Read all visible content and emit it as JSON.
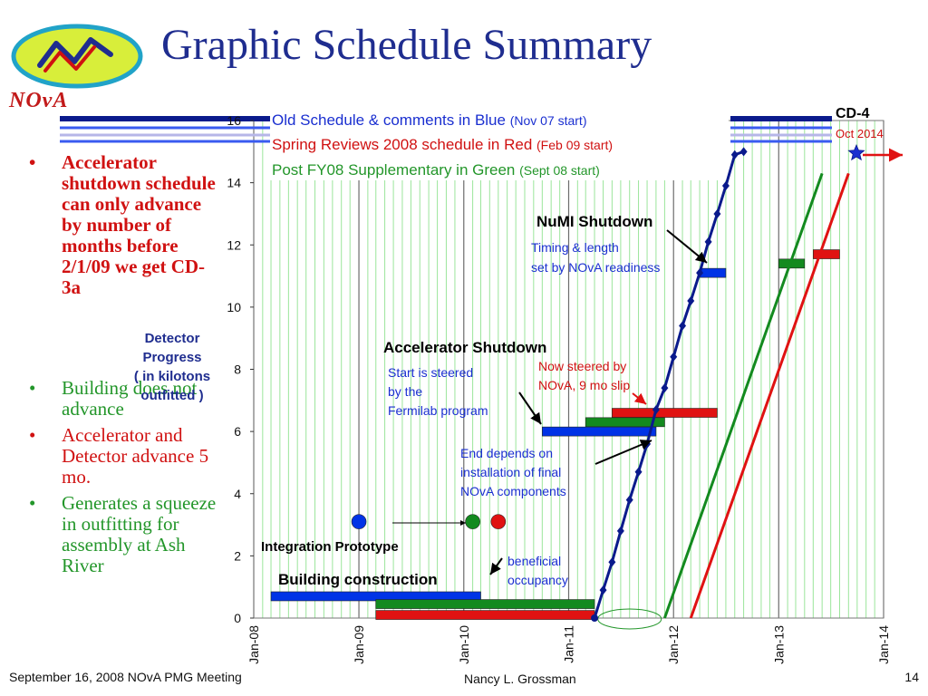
{
  "slide": {
    "title": "Graphic Schedule Summary",
    "logo_text": "NOvA"
  },
  "bullets": [
    {
      "text": "Accelerator shutdown schedule can only advance by number of months before 2/1/09 we get CD-3a",
      "color": "#d01111"
    },
    {
      "text": "Building does not advance",
      "color": "#23962a"
    },
    {
      "text": "Accelerator and Detector advance 5 mo.",
      "color": "#d01111"
    },
    {
      "text": "Generates a squeeze in outfitting for assembly at Ash River",
      "color": "#23962a"
    }
  ],
  "bullet_symbol": "•",
  "detector_label": [
    "Detector",
    "Progress",
    "( in kilotons",
    "outfitted )"
  ],
  "footer": {
    "left": "September 16, 2008 NOvA PMG Meeting",
    "center": "Nancy L. Grossman",
    "page": "14"
  },
  "chart_data": {
    "type": "line",
    "x_unit": "date",
    "xlim": [
      "2008-01-01",
      "2014-01-01"
    ],
    "ylim": [
      0,
      16
    ],
    "yticks": [
      0,
      2,
      4,
      6,
      8,
      10,
      12,
      14,
      16
    ],
    "xticks": [
      {
        "date": "2008-01-01",
        "label": "Jan-08"
      },
      {
        "date": "2009-01-01",
        "label": "Jan-09"
      },
      {
        "date": "2010-01-01",
        "label": "Jan-10"
      },
      {
        "date": "2011-01-01",
        "label": "Jan-11"
      },
      {
        "date": "2012-01-01",
        "label": "Jan-12"
      },
      {
        "date": "2013-01-01",
        "label": "Jan-13"
      },
      {
        "date": "2014-01-01",
        "label": "Jan-14"
      }
    ],
    "grid": "vertical-monthly",
    "colors": {
      "blue": "#0a1a8c",
      "bar_blue": "#0033e6",
      "green": "#138a1f",
      "red": "#e01212",
      "grid": "#9be59b"
    },
    "legend": [
      {
        "text": "Old Schedule & comments in Blue",
        "note": "(Nov 07 start)",
        "color": "#1a2fd0"
      },
      {
        "text": "Spring Reviews 2008 schedule in Red",
        "note": "(Feb 09 start)",
        "color": "#d01111"
      },
      {
        "text": "Post FY08 Supplementary in Green",
        "note": "(Sept 08 start)",
        "color": "#23962a"
      }
    ],
    "series": [
      {
        "name": "Old Schedule",
        "color": "blue",
        "markers": true,
        "points": [
          [
            "2011-04-01",
            0.0
          ],
          [
            "2011-05-01",
            0.9
          ],
          [
            "2011-06-01",
            1.8
          ],
          [
            "2011-07-01",
            2.8
          ],
          [
            "2011-08-01",
            3.8
          ],
          [
            "2011-09-01",
            4.7
          ],
          [
            "2011-10-01",
            5.6
          ],
          [
            "2011-11-01",
            6.7
          ],
          [
            "2011-12-01",
            7.4
          ],
          [
            "2012-01-01",
            8.4
          ],
          [
            "2012-02-01",
            9.4
          ],
          [
            "2012-03-01",
            10.2
          ],
          [
            "2012-04-01",
            11.1
          ],
          [
            "2012-05-01",
            12.1
          ],
          [
            "2012-06-01",
            13.0
          ],
          [
            "2012-07-01",
            13.9
          ],
          [
            "2012-08-01",
            14.9
          ],
          [
            "2012-09-01",
            15.0
          ]
        ]
      },
      {
        "name": "Post FY08 Supplementary",
        "color": "green",
        "markers": false,
        "points": [
          [
            "2011-12-01",
            0.0
          ],
          [
            "2013-06-01",
            14.3
          ]
        ]
      },
      {
        "name": "Spring Reviews 2008",
        "color": "red",
        "markers": false,
        "points": [
          [
            "2012-03-01",
            0.0
          ],
          [
            "2013-09-01",
            14.3
          ]
        ]
      }
    ],
    "bars": [
      {
        "color": "bar_blue",
        "start": "2008-03-01",
        "end": "2010-03-01",
        "y": 0.7
      },
      {
        "color": "green",
        "start": "2009-03-01",
        "end": "2011-04-01",
        "y": 0.45
      },
      {
        "color": "red",
        "start": "2009-03-01",
        "end": "2011-04-01",
        "y": 0.1
      },
      {
        "color": "bar_blue",
        "start": "2010-10-01",
        "end": "2011-11-01",
        "y": 6.0
      },
      {
        "color": "green",
        "start": "2011-03-01",
        "end": "2011-12-01",
        "y": 6.3
      },
      {
        "color": "red",
        "start": "2011-06-01",
        "end": "2012-06-01",
        "y": 6.6
      },
      {
        "color": "bar_blue",
        "start": "2012-04-01",
        "end": "2012-07-01",
        "y": 11.1
      },
      {
        "color": "green",
        "start": "2013-01-01",
        "end": "2013-04-01",
        "y": 11.4
      },
      {
        "color": "red",
        "start": "2013-05-01",
        "end": "2013-08-01",
        "y": 11.7
      }
    ],
    "dots": [
      {
        "color": "bar_blue",
        "date": "2009-01-01",
        "y": 3.1
      },
      {
        "color": "green",
        "date": "2010-02-01",
        "y": 3.1
      },
      {
        "color": "red",
        "date": "2010-05-01",
        "y": 3.1
      }
    ],
    "annotations": [
      {
        "text": "NuMI Shutdown",
        "color": "#000000",
        "bold": true,
        "size": 17
      },
      {
        "text": "Timing & length",
        "color": "#1a2fd0",
        "bold": false,
        "size": 14
      },
      {
        "text": "set by NOvA readiness",
        "color": "#1a2fd0",
        "bold": false,
        "size": 14
      },
      {
        "text": "Accelerator Shutdown",
        "color": "#000000",
        "bold": true,
        "size": 17
      },
      {
        "text": "Start is steered",
        "color": "#1a2fd0",
        "bold": false,
        "size": 14
      },
      {
        "text": "by the",
        "color": "#1a2fd0",
        "bold": false,
        "size": 14
      },
      {
        "text": "Fermilab program",
        "color": "#1a2fd0",
        "bold": false,
        "size": 14
      },
      {
        "text": "Now steered by",
        "color": "#d01111",
        "bold": false,
        "size": 14
      },
      {
        "text": "NOvA, 9 mo slip",
        "color": "#d01111",
        "bold": false,
        "size": 14
      },
      {
        "text": "End depends on",
        "color": "#1a2fd0",
        "bold": false,
        "size": 14
      },
      {
        "text": "installation of final",
        "color": "#1a2fd0",
        "bold": false,
        "size": 14
      },
      {
        "text": "NOvA components",
        "color": "#1a2fd0",
        "bold": false,
        "size": 14
      },
      {
        "text": "Integration Prototype",
        "color": "#000000",
        "bold": true,
        "size": 15
      },
      {
        "text": "Building construction",
        "color": "#000000",
        "bold": true,
        "size": 17
      },
      {
        "text": "beneficial",
        "color": "#1a2fd0",
        "bold": false,
        "size": 14
      },
      {
        "text": "occupancy",
        "color": "#1a2fd0",
        "bold": false,
        "size": 14
      },
      {
        "text": "CD-4",
        "color": "#000000",
        "bold": true,
        "size": 16
      },
      {
        "text": "Oct 2014",
        "color": "#d01111",
        "bold": false,
        "size": 13
      }
    ]
  }
}
